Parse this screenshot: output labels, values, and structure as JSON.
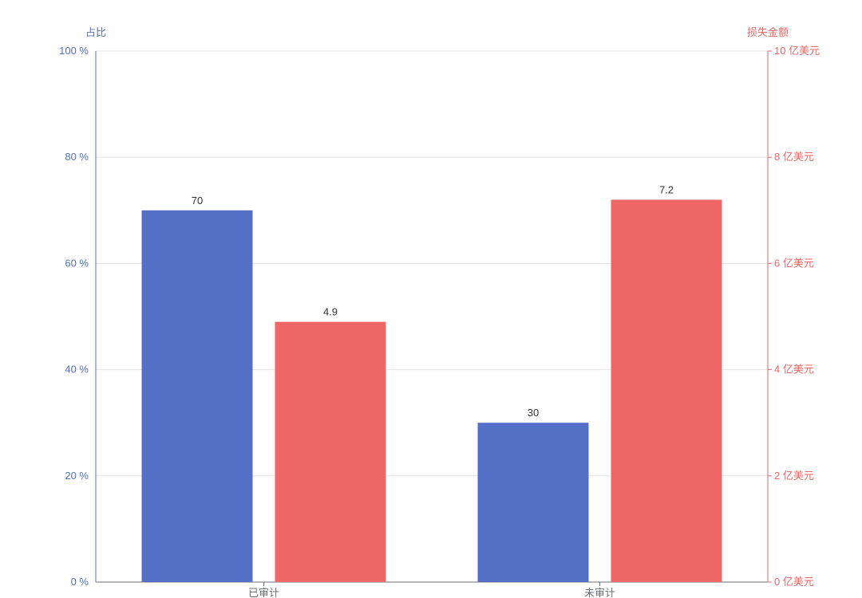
{
  "chart_data": {
    "type": "bar",
    "categories": [
      "已审计",
      "未审计"
    ],
    "series": [
      {
        "values": [
          70,
          30
        ],
        "axis": "left",
        "color": "#5470c6"
      },
      {
        "values": [
          4.9,
          7.2
        ],
        "axis": "right",
        "color": "#ee6666"
      }
    ],
    "left_axis": {
      "label": "占比",
      "ylim": [
        0,
        100
      ],
      "ticks": [
        "0 %",
        "20 %",
        "40 %",
        "60 %",
        "80 %",
        "100 %"
      ],
      "color": "#5470c6"
    },
    "right_axis": {
      "label": "损失金额",
      "ylim": [
        0,
        10
      ],
      "ticks": [
        "0 亿美元",
        "2 亿美元",
        "4 亿美元",
        "6 亿美元",
        "8 亿美元",
        "10 亿美元"
      ],
      "color": "#ee6666"
    },
    "data_labels": [
      [
        "70",
        "30"
      ],
      [
        "4.9",
        "7.2"
      ]
    ],
    "grid": true,
    "legend": "none"
  }
}
